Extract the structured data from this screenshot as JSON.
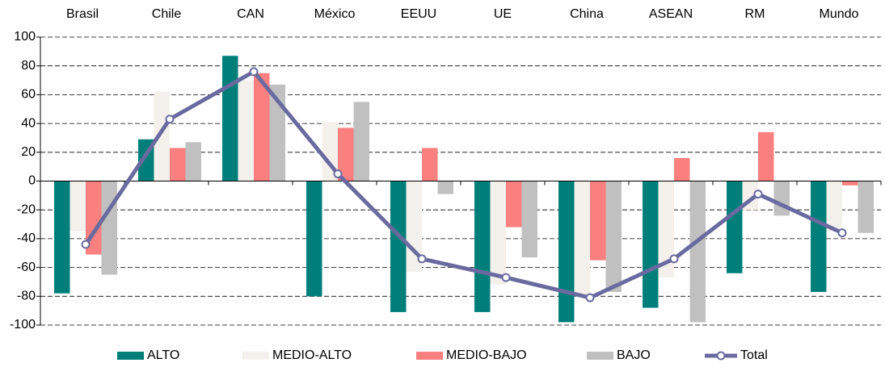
{
  "chart_data": {
    "type": "bar",
    "categories": [
      "Brasil",
      "Chile",
      "CAN",
      "México",
      "EEUU",
      "UE",
      "China",
      "ASEAN",
      "RM",
      "Mundo"
    ],
    "series": [
      {
        "name": "ALTO",
        "color": "#007f7a",
        "values": [
          -78,
          29,
          87,
          -80,
          -91,
          -91,
          -98,
          -88,
          -64,
          -77
        ]
      },
      {
        "name": "MEDIO-ALTO",
        "color": "#f4f0ec",
        "values": [
          -35,
          62,
          70,
          41,
          -63,
          -72,
          -80,
          -67,
          -20,
          -35
        ]
      },
      {
        "name": "MEDIO-BAJO",
        "color": "#fa8080",
        "values": [
          -51,
          23,
          75,
          37,
          23,
          -32,
          -55,
          16,
          34,
          -3
        ]
      },
      {
        "name": "BAJO",
        "color": "#c0c0c0",
        "values": [
          -65,
          27,
          67,
          55,
          -9,
          -53,
          -77,
          -98,
          -24,
          -36
        ]
      },
      {
        "name": "Total",
        "type": "line",
        "color": "#6a6aa0",
        "values": [
          -44,
          43,
          76,
          5,
          -54,
          -67,
          -81,
          -54,
          -9,
          -36
        ]
      }
    ],
    "ylim": [
      -100,
      100
    ],
    "yticks": [
      -100,
      -80,
      -60,
      -40,
      -20,
      0,
      20,
      40,
      60,
      80,
      100
    ],
    "grid": true,
    "legend": "bottom"
  }
}
